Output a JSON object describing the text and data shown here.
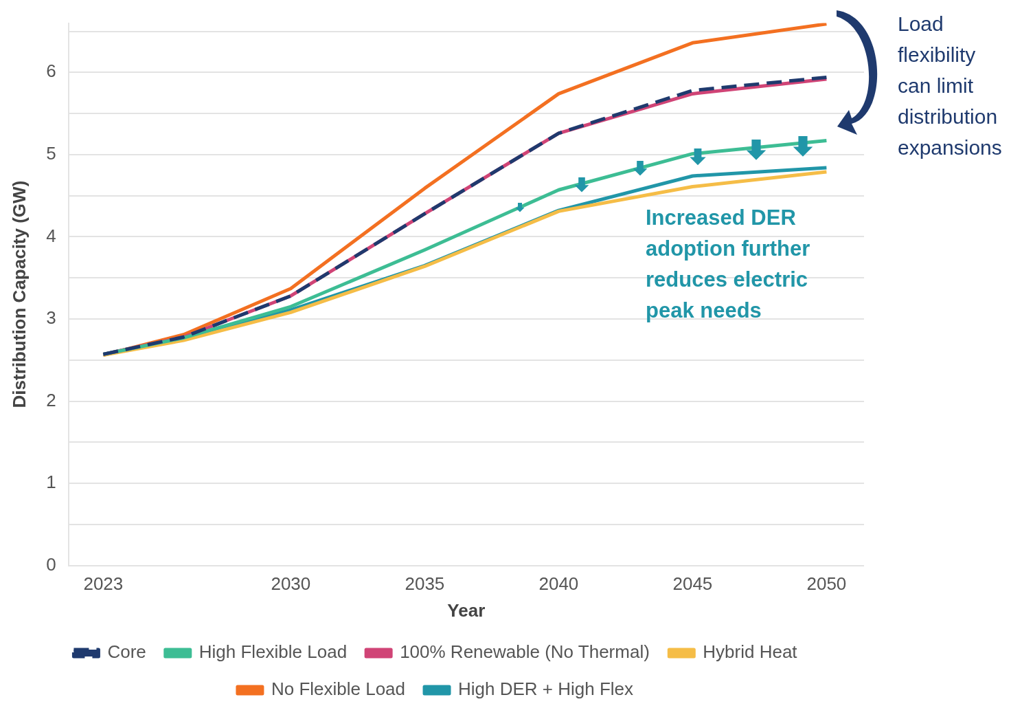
{
  "chart_data": {
    "type": "line",
    "xlabel": "Year",
    "ylabel": "Distribution Capacity (GW)",
    "x": [
      2023,
      2026,
      2030,
      2035,
      2040,
      2045,
      2050
    ],
    "series": [
      {
        "name": "Core",
        "color": "#1f3a6e",
        "line_style": "dashed",
        "values": [
          2.57,
          2.78,
          3.28,
          4.28,
          5.26,
          5.78,
          5.94
        ]
      },
      {
        "name": "High Flexible Load",
        "color": "#3dbd94",
        "values": [
          2.57,
          2.77,
          3.15,
          3.84,
          4.57,
          5.01,
          5.17
        ]
      },
      {
        "name": "100% Renewable (No Thermal)",
        "color": "#d04476",
        "values": [
          2.57,
          2.78,
          3.28,
          4.28,
          5.26,
          5.74,
          5.92
        ]
      },
      {
        "name": "Hybrid Heat",
        "color": "#f5bd47",
        "values": [
          2.56,
          2.74,
          3.08,
          3.64,
          4.31,
          4.61,
          4.79
        ]
      },
      {
        "name": "No Flexible Load",
        "color": "#f37021",
        "values": [
          2.56,
          2.81,
          3.37,
          4.59,
          5.74,
          6.36,
          6.59
        ]
      },
      {
        "name": "High DER + High Flex",
        "color": "#2196a8",
        "values": [
          2.57,
          2.76,
          3.11,
          3.65,
          4.32,
          4.74,
          4.84
        ]
      }
    ],
    "xlim": [
      2021.7,
      2051.4
    ],
    "xticks": [
      2023,
      2030,
      2035,
      2040,
      2045,
      2050
    ],
    "ylim": [
      0,
      6.6
    ],
    "yticks": [
      0,
      {
        "value": 0.5,
        "label": null
      },
      1,
      {
        "value": 1.5,
        "label": null
      },
      2,
      {
        "value": 2.5,
        "label": null
      },
      3,
      {
        "value": 3.5,
        "label": null
      },
      4,
      {
        "value": 4.5,
        "label": null
      },
      5,
      {
        "value": 5.5,
        "label": null
      },
      6,
      {
        "value": 6.5,
        "label": null
      }
    ],
    "grid": "y",
    "legend": "bottom",
    "marker": "none",
    "annotations": [
      "Load flexibility can limit distribution expansions",
      "Increased DER adoption further reduces electric peak needs"
    ]
  }
}
